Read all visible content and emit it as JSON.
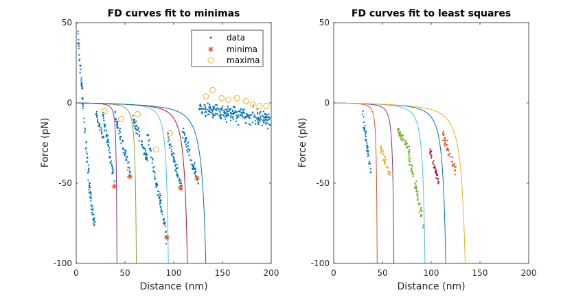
{
  "colors": {
    "data": "#0072BD",
    "minima": "#D95319",
    "maxima": "#EDB120",
    "curves": [
      "#7E2F8E",
      "#77AC30",
      "#4DBEEE",
      "#A2142F",
      "#0072BD",
      "#D95319",
      "#EDB120"
    ]
  },
  "chart_data": [
    {
      "type": "scatter",
      "title": "FD curves fit to minimas",
      "xlabel": "Distance (nm)",
      "ylabel": "Force (pN)",
      "xlim": [
        0,
        200
      ],
      "ylim": [
        -100,
        50
      ],
      "xticks": [
        "0",
        "50",
        "100",
        "150",
        "200"
      ],
      "yticks": [
        "-100",
        "-50",
        "0",
        "50"
      ],
      "legend": {
        "position": "top-right",
        "entries": [
          "data",
          "minima",
          "maxima"
        ]
      },
      "data_segments": [
        {
          "x0": 1,
          "x1": 6,
          "y0": 48,
          "y1": 8,
          "spread": 6,
          "n": 30
        },
        {
          "x0": 6,
          "x1": 13,
          "y0": 5,
          "y1": -45,
          "spread": 6,
          "n": 30
        },
        {
          "x0": 13,
          "x1": 19,
          "y0": -50,
          "y1": -78,
          "spread": 7,
          "n": 40
        },
        {
          "x0": 19,
          "x1": 28,
          "y0": -5,
          "y1": -22,
          "spread": 5,
          "n": 25
        },
        {
          "x0": 27,
          "x1": 40,
          "y0": -5,
          "y1": -52,
          "spread": 6,
          "n": 50
        },
        {
          "x0": 40,
          "x1": 56,
          "y0": -8,
          "y1": -46,
          "spread": 6,
          "n": 55
        },
        {
          "x0": 58,
          "x1": 73,
          "y0": -10,
          "y1": -35,
          "spread": 6,
          "n": 55
        },
        {
          "x0": 73,
          "x1": 93,
          "y0": -20,
          "y1": -84,
          "spread": 8,
          "n": 70
        },
        {
          "x0": 94,
          "x1": 108,
          "y0": -22,
          "y1": -53,
          "spread": 6,
          "n": 55
        },
        {
          "x0": 109,
          "x1": 125,
          "y0": -18,
          "y1": -48,
          "spread": 6,
          "n": 55
        },
        {
          "x0": 126,
          "x1": 199,
          "y0": -4,
          "y1": -10,
          "spread": 8,
          "n": 260
        }
      ],
      "minima": [
        [
          39,
          -52
        ],
        [
          55,
          -46
        ],
        [
          93,
          -84
        ],
        [
          107,
          -53
        ],
        [
          124,
          -47
        ]
      ],
      "maxima": [
        [
          29,
          -5
        ],
        [
          46,
          -10
        ],
        [
          63,
          -7
        ],
        [
          82,
          -29
        ],
        [
          96,
          -19
        ],
        [
          133,
          4
        ],
        [
          140,
          8
        ],
        [
          149,
          3
        ],
        [
          156,
          2
        ],
        [
          165,
          3
        ],
        [
          174,
          1
        ],
        [
          181,
          -1
        ],
        [
          188,
          -2
        ],
        [
          195,
          -2
        ]
      ],
      "fits": [
        {
          "Lc": 43,
          "Lp": 0.33
        },
        {
          "Lc": 64,
          "Lp": 0.52
        },
        {
          "Lc": 98.5,
          "Lp": 0.65
        },
        {
          "Lc": 120,
          "Lp": 1.0
        },
        {
          "Lc": 141,
          "Lp": 1.3
        }
      ]
    },
    {
      "type": "scatter",
      "title": "FD curves fit to least squares",
      "xlabel": "Distance (nm)",
      "ylabel": "Force (pN)",
      "xlim": [
        0,
        200
      ],
      "ylim": [
        -100,
        50
      ],
      "xticks": [
        "0",
        "50",
        "100",
        "150",
        "200"
      ],
      "yticks": [
        "-100",
        "-50",
        "0",
        "50"
      ],
      "clusters": [
        {
          "x0": 30,
          "x1": 38,
          "y0": -8,
          "y1": -42,
          "spread": 5,
          "n": 40
        },
        {
          "x0": 48,
          "x1": 58,
          "y0": -28,
          "y1": -45,
          "spread": 6,
          "n": 40
        },
        {
          "x0": 65,
          "x1": 78,
          "y0": -17,
          "y1": -30,
          "spread": 5,
          "n": 45
        },
        {
          "x0": 76,
          "x1": 92,
          "y0": -30,
          "y1": -75,
          "spread": 7,
          "n": 60
        },
        {
          "x0": 99,
          "x1": 108,
          "y0": -30,
          "y1": -50,
          "spread": 5,
          "n": 35
        },
        {
          "x0": 112,
          "x1": 125,
          "y0": -20,
          "y1": -42,
          "spread": 6,
          "n": 45
        }
      ],
      "fits": [
        {
          "Lc": 46,
          "Lp": 0.38
        },
        {
          "Lc": 64,
          "Lp": 0.5
        },
        {
          "Lc": 98,
          "Lp": 0.8
        },
        {
          "Lc": 121,
          "Lp": 1.0
        },
        {
          "Lc": 143,
          "Lp": 1.3
        }
      ]
    }
  ]
}
